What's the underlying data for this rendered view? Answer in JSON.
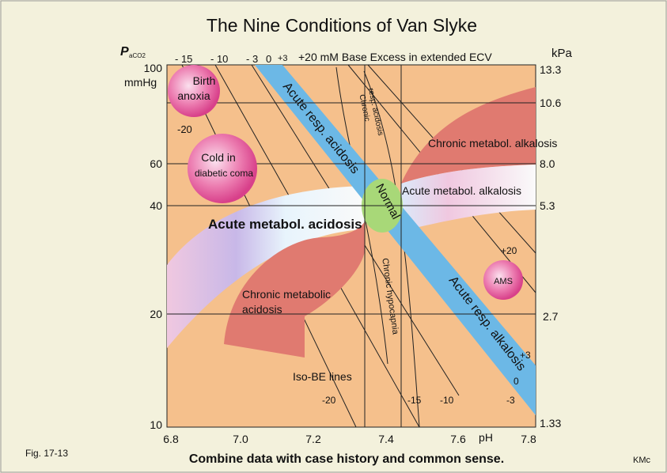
{
  "title": "The Nine Conditions of Van Slyke",
  "y_axis": {
    "symbol": "P",
    "subscript": "aCO2",
    "unit": "mmHg",
    "ticks": [
      "100",
      "60",
      "40",
      "20",
      "10"
    ]
  },
  "y2_axis": {
    "unit": "kPa",
    "ticks": [
      "13.3",
      "10.6",
      "8.0",
      "5.3",
      "2.7",
      "1.33"
    ]
  },
  "x_axis": {
    "label": "pH",
    "ticks": [
      "6.8",
      "7.0",
      "7.2",
      "7.4",
      "7.6",
      "7.8"
    ]
  },
  "top_scale": {
    "ticks": [
      "- 15",
      "- 10",
      "- 3",
      "0",
      "+3"
    ],
    "label": "+20 mM Base Excess in extended ECV"
  },
  "regions": [
    {
      "lines": [
        "Birth",
        "anoxia"
      ]
    },
    {
      "lines": [
        "Cold in",
        "diabetic coma"
      ]
    },
    {
      "lines": [
        "Acute resp. acidosis"
      ]
    },
    {
      "lines": [
        "Chronic",
        "resp. acidosis"
      ]
    },
    {
      "lines": [
        "Chronic metabol. alkalosis"
      ]
    },
    {
      "lines": [
        "Acute metabol. alkalosis"
      ]
    },
    {
      "lines": [
        "Normal"
      ]
    },
    {
      "lines": [
        "Acute metabol. acidosis"
      ]
    },
    {
      "lines": [
        "Chronic metabolic",
        "acidosis"
      ]
    },
    {
      "lines": [
        "Chronic hypocapnia"
      ]
    },
    {
      "lines": [
        "Acute resp. alkalosis"
      ]
    },
    {
      "lines": [
        "AMS"
      ]
    },
    {
      "lines": [
        "Iso-BE lines"
      ]
    }
  ],
  "be_labels": [
    "-20",
    "-20",
    "-15",
    "-10",
    "-3",
    "+20",
    "+3",
    "0"
  ],
  "footer": {
    "figure": "Fig. 17-13",
    "note": "Combine data with case history and common sense.",
    "author": "KMc"
  }
}
